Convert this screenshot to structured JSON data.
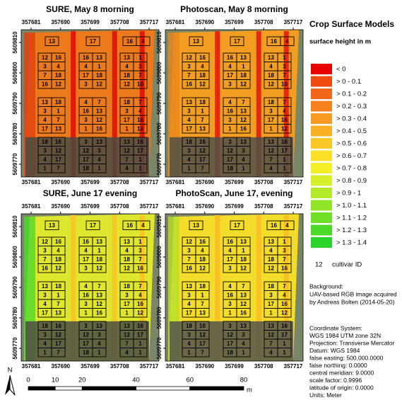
{
  "panels": [
    {
      "title": "SURE, May 8 morning"
    },
    {
      "title": "Photoscan, May 8 morning"
    },
    {
      "title": "SURE, June 17 evening"
    },
    {
      "title": "PhotoScan, June 17, evening"
    }
  ],
  "easting_ticks": [
    357681,
    357690,
    357699,
    357708,
    357717
  ],
  "northing_ticks": [
    5609810,
    5609800,
    5609790,
    5609780,
    5609770
  ],
  "plots": {
    "top": [
      "13",
      "17",
      "16",
      "4"
    ],
    "blocks": [
      [
        [
          "12",
          "16",
          "16",
          "13",
          "13",
          "1"
        ],
        [
          "3",
          "4",
          "4",
          "1",
          "4",
          "3"
        ],
        [
          "7",
          "18",
          "17",
          "18",
          "18",
          "7"
        ],
        [
          "16",
          "12",
          "3",
          "12",
          "12",
          "16"
        ]
      ],
      [
        [
          "13",
          "18",
          "4",
          "7",
          "18",
          "7"
        ],
        [
          "3",
          "1",
          "16",
          "13",
          "3",
          "4"
        ],
        [
          "4",
          "7",
          "3",
          "12",
          "17",
          "16"
        ],
        [
          "17",
          "13",
          "1",
          "16",
          "1",
          "12"
        ]
      ],
      [
        [
          "18",
          "16",
          "3",
          "13",
          "13",
          "16"
        ],
        [
          "3",
          "12",
          "12",
          "3",
          "12",
          "17"
        ],
        [
          "4",
          "17",
          "17",
          "4",
          "7",
          "1"
        ],
        [
          "1",
          "7",
          "18",
          "1",
          "4",
          "1"
        ]
      ]
    ]
  },
  "legend": {
    "title": "Crop Surface Models",
    "subtitle": "surface height in m",
    "items": [
      {
        "label": "< 0",
        "color": "#e60000"
      },
      {
        "label": "> 0 - 0.1",
        "color": "#ef4a10"
      },
      {
        "label": "> 0.1 - 0.2",
        "color": "#f2661a"
      },
      {
        "label": "> 0.2 - 0.3",
        "color": "#f5811f"
      },
      {
        "label": "> 0.3 - 0.4",
        "color": "#f79a22"
      },
      {
        "label": "> 0.4 - 0.5",
        "color": "#f9b024"
      },
      {
        "label": "> 0.5 - 0.6",
        "color": "#fac826"
      },
      {
        "label": "> 0.6 - 0.7",
        "color": "#fce028"
      },
      {
        "label": "> 0.7 - 0.8",
        "color": "#f4ee2a"
      },
      {
        "label": "> 0.8 - 0.9",
        "color": "#d6ef2a"
      },
      {
        "label": "> 0.9 - 1",
        "color": "#b4ea29"
      },
      {
        "label": "> 1.0 - 1.1",
        "color": "#92e428"
      },
      {
        "label": "> 1.1 - 1.2",
        "color": "#6fdf28"
      },
      {
        "label": "> 1.2 - 1.3",
        "color": "#4dd928"
      },
      {
        "label": "> 1.3 - 1.4",
        "color": "#2bd42a"
      }
    ],
    "cultivar_symbol": "12",
    "cultivar_label": "cultivar ID"
  },
  "background": [
    "Background:",
    "UAV-based RGB image acquired",
    "by Andreas Bolten (2014-05-20)"
  ],
  "coordinate_system": [
    "Coordinate System:",
    " WGS 1984 UTM zone 32N",
    "Projection: Transverse Mercator",
    "Datum: WGS 1984",
    "false easting: 500,000.0000",
    "false northing: 0.0000",
    "central meridian: 9.0000",
    "scale factor: 0.9996",
    "latitude of origin: 0.0000",
    "Units: Meter"
  ],
  "north": "N",
  "scale_bar": {
    "ticks": [
      0,
      10,
      20,
      40,
      60,
      80
    ],
    "unit": "m"
  }
}
